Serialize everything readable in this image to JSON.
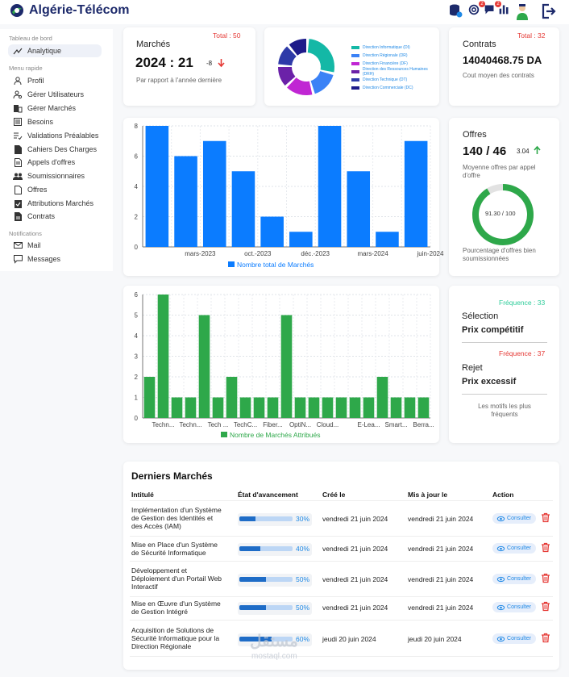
{
  "header": {
    "brand": "Algérie-Télécom",
    "icons": [
      "database-settings-icon",
      "at-sign-icon",
      "message-icon",
      "bar-chart-icon",
      "user-avatar-icon",
      "logout-icon"
    ],
    "badges": {
      "mentions": "2",
      "messages": "2"
    }
  },
  "sidebar": {
    "section_dashboard": "Tableau de bord",
    "analytique": "Analytique",
    "section_menu": "Menu rapide",
    "items": [
      "Profil",
      "Gérer Utilisateurs",
      "Gérer Marchés",
      "Besoins",
      "Validations Préalables",
      "Cahiers Des Charges",
      "Appels d'offres",
      "Soumissionnaires",
      "Offres",
      "Attributions Marchés",
      "Contrats"
    ],
    "section_notifications": "Notifications",
    "notif_items": [
      "Mail",
      "Messages"
    ]
  },
  "marches": {
    "title": "Marchés",
    "total": "Total : 50",
    "value": "2024 : 21",
    "delta": "-8",
    "subtitle": "Par rapport à l'année dernière"
  },
  "donut": {
    "legend": [
      "Direction Informatique (DI)",
      "Direction Régionale (DR)",
      "Direction Financière (DF)",
      "Direction des Ressources Humaines (DRH)",
      "Direction Technique (DT)",
      "Direction Commerciale (DC)"
    ],
    "colors": [
      "#14b8a6",
      "#3b82f6",
      "#c026d3",
      "#6b21a8",
      "#2e3aa8",
      "#1e1b8a"
    ]
  },
  "contrats": {
    "title": "Contrats",
    "total": "Total : 32",
    "value": "14040468.75 DA",
    "subtitle": "Cout moyen des contrats"
  },
  "offres": {
    "title": "Offres",
    "value": "140 / 46",
    "delta": "3.04",
    "subtitle": "Moyenne offres par appel d'offre",
    "gauge_text": "91.30 / 100",
    "gauge_value": 91.3,
    "caption": "Pourcentage d'offres bien soumissionnées"
  },
  "chart_data": [
    {
      "type": "bar",
      "categories": [
        "",
        "mars-2023",
        "",
        "oct.-2023",
        "",
        "déc.-2023",
        "",
        "mars-2024",
        "",
        "juin-2024"
      ],
      "values": [
        8,
        6,
        7,
        5,
        2,
        1,
        8,
        5,
        1,
        7
      ],
      "ylim": [
        0,
        8
      ],
      "yticks": [
        "0",
        "2",
        "4",
        "6",
        "8"
      ],
      "legend": "Nombre total de Marchés",
      "color": "#0b7cff",
      "grid": true,
      "legend_position": "bottom"
    },
    {
      "type": "bar",
      "categories": [
        "",
        "Techn...",
        "",
        "Techn...",
        "",
        "Tech ...",
        "",
        "TechC...",
        "",
        "Fiber...",
        "",
        "OptiN...",
        "",
        "Cloud...",
        "",
        "",
        "E-Lea...",
        "",
        "Smart...",
        "",
        "Berra..."
      ],
      "values": [
        2,
        6,
        1,
        1,
        5,
        1,
        2,
        1,
        1,
        1,
        5,
        1,
        1,
        1,
        1,
        1,
        1,
        2,
        1,
        1,
        1
      ],
      "ylim": [
        0,
        6
      ],
      "yticks": [
        "0",
        "1",
        "2",
        "3",
        "4",
        "5",
        "6"
      ],
      "legend": "Nombre de Marchés Attribués",
      "color": "#2ea84a",
      "grid": true,
      "legend_position": "bottom"
    }
  ],
  "motifs": {
    "freq1": "Fréquence : 33",
    "label1": "Sélection",
    "reason1": "Prix compétitif",
    "freq2": "Fréquence : 37",
    "label2": "Rejet",
    "reason2": "Prix excessif",
    "caption": "Les motifs les plus fréquents"
  },
  "table": {
    "title": "Derniers Marchés",
    "headers": [
      "Intitulé",
      "État d'avancement",
      "Créé le",
      "Mis à jour le",
      "Action"
    ],
    "action_label": "Consulter",
    "rows": [
      {
        "l1": "Implémentation d'un Système",
        "l2": "de Gestion des Identités et",
        "l3": "des Accès (IAM)",
        "progress": 30,
        "ptext": "30%",
        "created": "vendredi 21 juin 2024",
        "updated": "vendredi 21 juin 2024"
      },
      {
        "l1": "Mise en Place d'un Système",
        "l2": "de Sécurité Informatique",
        "l3": "",
        "progress": 40,
        "ptext": "40%",
        "created": "vendredi 21 juin 2024",
        "updated": "vendredi 21 juin 2024"
      },
      {
        "l1": "Développement et",
        "l2": "Déploiement d'un Portail Web",
        "l3": "Interactif",
        "progress": 50,
        "ptext": "50%",
        "created": "vendredi 21 juin 2024",
        "updated": "vendredi 21 juin 2024"
      },
      {
        "l1": "Mise en Œuvre d'un Système",
        "l2": "de Gestion Intégré",
        "l3": "",
        "progress": 50,
        "ptext": "50%",
        "created": "vendredi 21 juin 2024",
        "updated": "vendredi 21 juin 2024"
      },
      {
        "l1": "Acquisition de Solutions de",
        "l2": "Sécurité Informatique pour la",
        "l3": "Direction Régionale",
        "progress": 60,
        "ptext": "60%",
        "created": "jeudi 20 juin 2024",
        "updated": "jeudi 20 juin 2024"
      }
    ]
  },
  "watermark": {
    "arabic": "مستقل",
    "latin": "mostaql.com"
  }
}
